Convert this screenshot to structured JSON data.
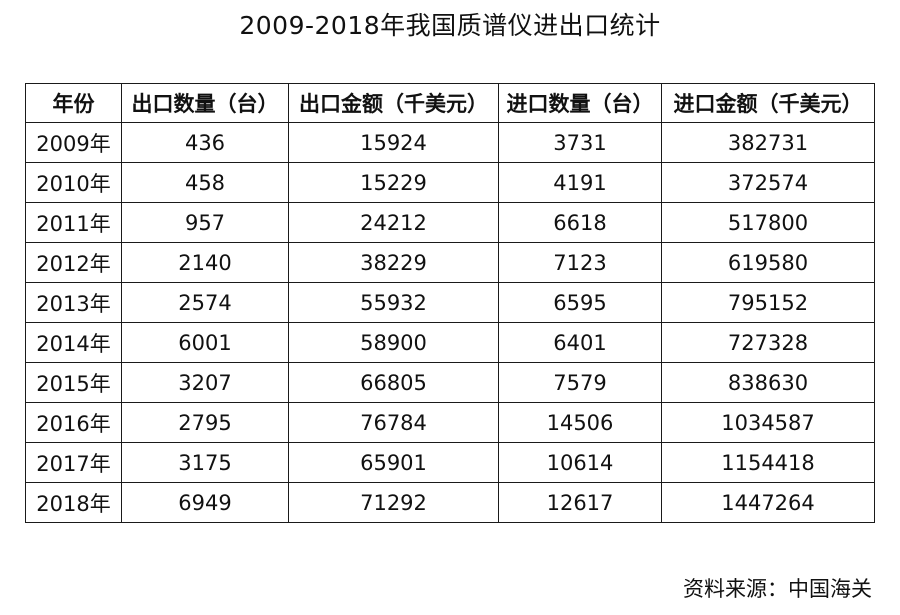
{
  "title": "2009-2018年我国质谱仪进出口统计",
  "source": "资料来源：中国海关",
  "chart_data": {
    "type": "table",
    "title": "2009-2018年我国质谱仪进出口统计",
    "columns": [
      "年份",
      "出口数量（台）",
      "出口金额（千美元）",
      "进口数量（台）",
      "进口金额（千美元）"
    ],
    "rows": [
      [
        "2009年",
        "436",
        "15924",
        "3731",
        "382731"
      ],
      [
        "2010年",
        "458",
        "15229",
        "4191",
        "372574"
      ],
      [
        "2011年",
        "957",
        "24212",
        "6618",
        "517800"
      ],
      [
        "2012年",
        "2140",
        "38229",
        "7123",
        "619580"
      ],
      [
        "2013年",
        "2574",
        "55932",
        "6595",
        "795152"
      ],
      [
        "2014年",
        "6001",
        "58900",
        "6401",
        "727328"
      ],
      [
        "2015年",
        "3207",
        "66805",
        "7579",
        "838630"
      ],
      [
        "2016年",
        "2795",
        "76784",
        "14506",
        "1034587"
      ],
      [
        "2017年",
        "3175",
        "65901",
        "10614",
        "1154418"
      ],
      [
        "2018年",
        "6949",
        "71292",
        "12617",
        "1447264"
      ]
    ]
  }
}
